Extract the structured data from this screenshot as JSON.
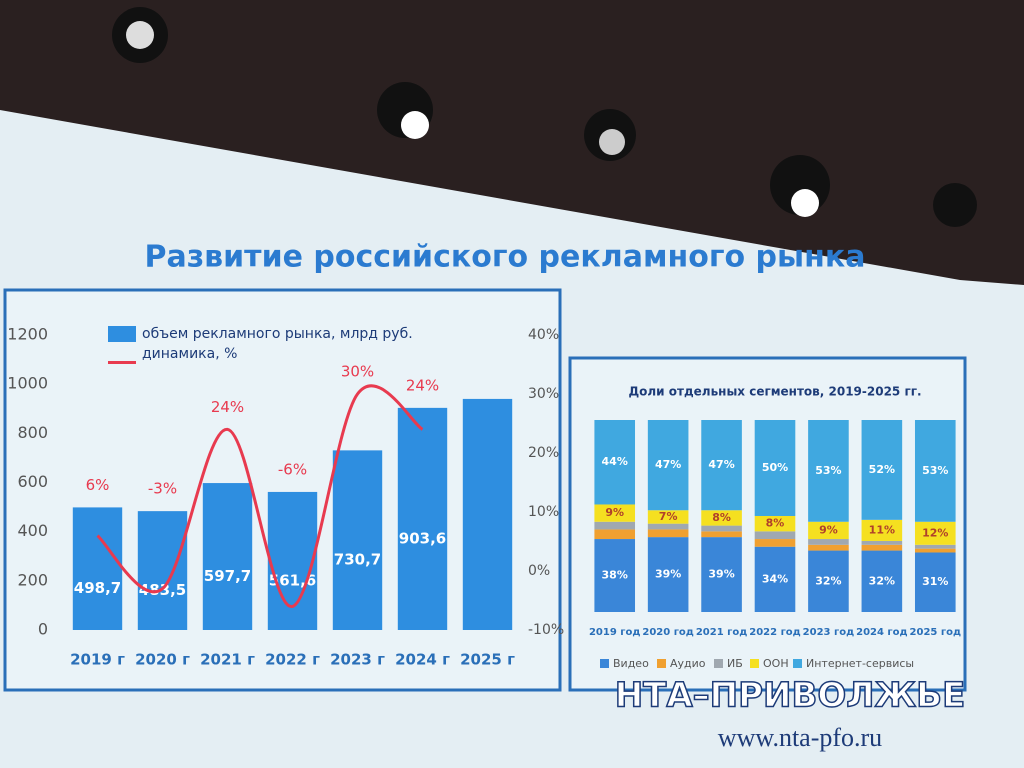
{
  "title": "Развитие российского рекламного рынка",
  "watermark": {
    "name": "НТА–ПРИВОЛЖЬЕ",
    "url": "www.nta-pfo.ru"
  },
  "chart_data": [
    {
      "type": "bar",
      "categories": [
        "2019 г",
        "2020 г",
        "2021 г",
        "2022 г",
        "2023 г",
        "2024 г",
        "2025 г"
      ],
      "series": [
        {
          "name": "объем рекламного рынка, млрд руб.",
          "color": "#2e8ee0",
          "values": [
            498.7,
            483.5,
            597.7,
            561.6,
            730.7,
            903.6,
            940
          ],
          "value_labels": [
            "498,7",
            "483,5",
            "597,7",
            "561,6",
            "730,7",
            "903,6",
            null
          ]
        },
        {
          "name": "динамика, %",
          "type": "line",
          "axis": "y2",
          "color": "#e83a4f",
          "values": [
            6,
            -3,
            24,
            -6,
            30,
            24,
            null
          ],
          "value_labels": [
            "6%",
            "-3%",
            "24%",
            "-6%",
            "30%",
            "24%",
            null
          ]
        }
      ],
      "ylim": [
        0,
        1200
      ],
      "yticks": [
        0,
        200,
        400,
        600,
        800,
        1000,
        1200
      ],
      "y2lim": [
        -10,
        40
      ],
      "y2ticks": [
        {
          "value": -10,
          "label": "-10%"
        },
        {
          "value": 0,
          "label": "0%"
        },
        {
          "value": 10,
          "label": "10%"
        },
        {
          "value": 20,
          "label": "20%"
        },
        {
          "value": 30,
          "label": "30%"
        },
        {
          "value": 40,
          "label": "40%"
        }
      ]
    },
    {
      "type": "stacked_bar",
      "title": "Доли отдельных сегментов, 2019-2025 гг.",
      "categories": [
        "2019 год",
        "2020 год",
        "2021 год",
        "2022 год",
        "2023 год",
        "2024 год",
        "2025 год"
      ],
      "series": [
        {
          "name": "Видео",
          "color": "#3a86d8",
          "values": [
            38,
            39,
            39,
            34,
            32,
            32,
            31
          ],
          "value_labels": [
            "38%",
            "39%",
            "39%",
            "34%",
            "32%",
            "32%",
            "31%"
          ]
        },
        {
          "name": "Аудио",
          "color": "#f0a030",
          "values": [
            5,
            4,
            3,
            4,
            3,
            3,
            2
          ]
        },
        {
          "name": "ИБ",
          "color": "#a0a8b0",
          "values": [
            4,
            3,
            3,
            4,
            3,
            2,
            2
          ]
        },
        {
          "name": "ООН",
          "color": "#f5e020",
          "values": [
            9,
            7,
            8,
            8,
            9,
            11,
            12
          ],
          "value_labels": [
            "9%",
            "7%",
            "8%",
            "8%",
            "9%",
            "11%",
            "12%"
          ]
        },
        {
          "name": "Интернет-сервисы",
          "color": "#40a8e0",
          "values": [
            44,
            47,
            47,
            50,
            53,
            52,
            53
          ],
          "value_labels": [
            "44%",
            "47%",
            "47%",
            "50%",
            "53%",
            "52%",
            "53%"
          ]
        }
      ],
      "ylim": [
        0,
        100
      ]
    }
  ]
}
